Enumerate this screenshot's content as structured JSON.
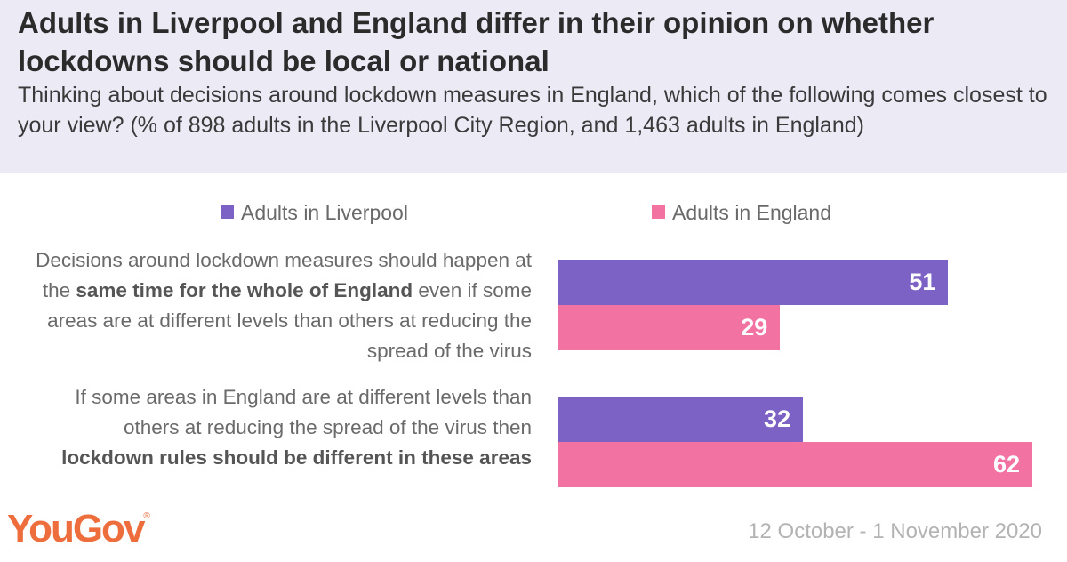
{
  "header": {
    "title": "Adults in Liverpool and England differ in their opinion on whether lockdowns should be local or national",
    "subtitle": "Thinking about decisions around lockdown measures in England, which of the following comes closest to your view? (% of 898 adults in the Liverpool City Region, and 1,463 adults in England)"
  },
  "chart_data": {
    "type": "bar",
    "orientation": "horizontal",
    "categories": [
      "Decisions around lockdown measures should happen at the same time for the whole of England even if some areas are at different levels than others at reducing the spread of the virus",
      "If some areas in England are at different levels than others at reducing the spread of the virus then lockdown rules should be different in these areas"
    ],
    "category_parts": [
      {
        "pre": "Decisions around lockdown measures should happen at the ",
        "bold": "same time for the whole of England",
        "post": " even if some areas are at different levels than others at reducing the spread of the virus"
      },
      {
        "pre": "If some areas in England are at different levels than others at reducing the spread of the virus then ",
        "bold": "lockdown rules should be different in these areas",
        "post": ""
      }
    ],
    "series": [
      {
        "name": "Adults in Liverpool",
        "values": [
          51,
          32
        ],
        "color": "#7b62c4"
      },
      {
        "name": "Adults in England",
        "values": [
          29,
          62
        ],
        "color": "#f272a2"
      }
    ],
    "xlim": [
      0,
      62
    ],
    "legend": "top",
    "grid": false,
    "data_labels": true
  },
  "footer": {
    "logo": "YouGov",
    "date": "12 October - 1 November 2020"
  },
  "colors": {
    "header_bg": "#eceaf5",
    "logo": "#ee6d3d"
  }
}
